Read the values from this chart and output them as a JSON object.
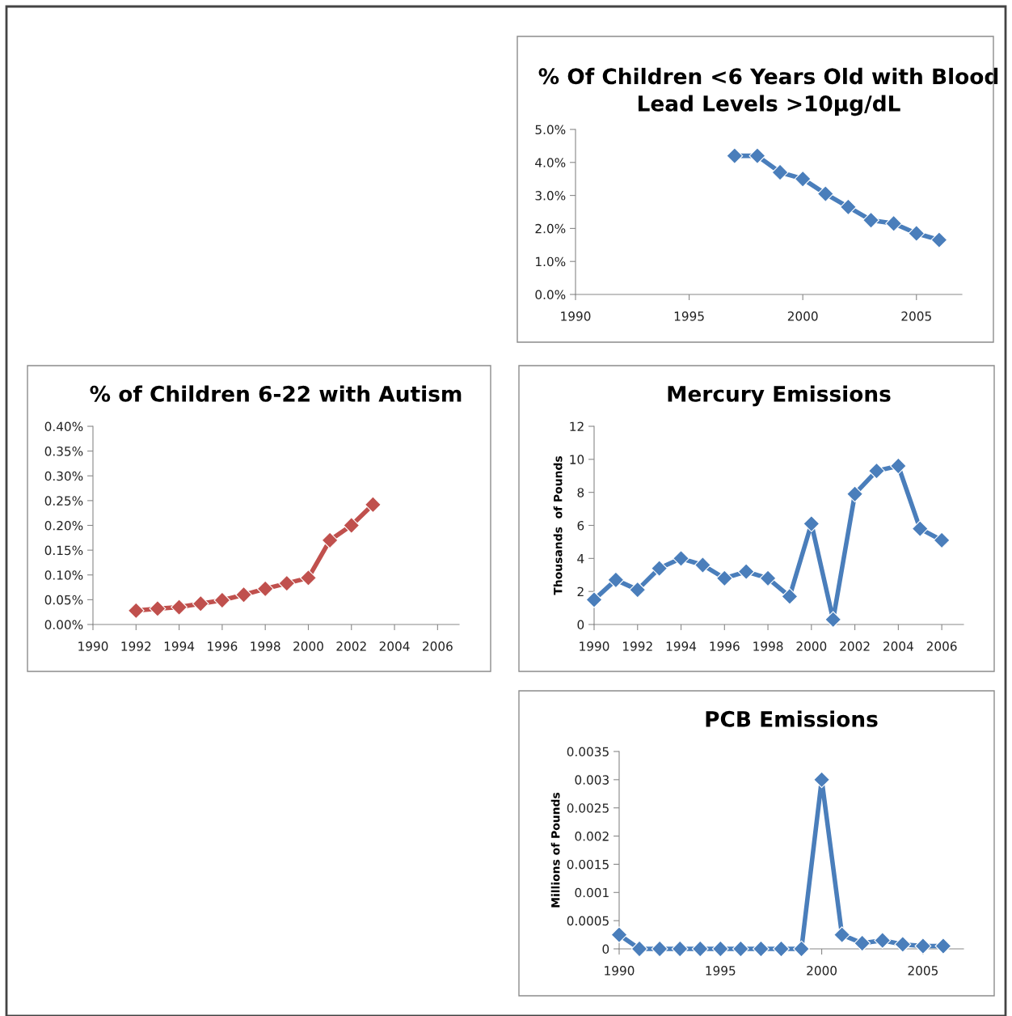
{
  "chart_data": [
    {
      "type": "line",
      "title": "% Of Children <6 Years Old with Blood Lead Levels >10µg/dL",
      "x": [
        1997,
        1998,
        1999,
        2000,
        2001,
        2002,
        2003,
        2004,
        2005,
        2006
      ],
      "series": [
        {
          "color": "#4a7ebb",
          "values": [
            4.2,
            4.2,
            3.7,
            3.5,
            3.05,
            2.65,
            2.25,
            2.15,
            1.85,
            1.65
          ]
        }
      ],
      "xlim": [
        1990,
        2007
      ],
      "xticks": [
        1990,
        1995,
        2000,
        2005
      ],
      "ylim": [
        0,
        5
      ],
      "yticks": [
        {
          "value": 0,
          "label": "0.0%"
        },
        {
          "value": 1,
          "label": "1.0%"
        },
        {
          "value": 2,
          "label": "2.0%"
        },
        {
          "value": 3,
          "label": "3.0%"
        },
        {
          "value": 4,
          "label": "4.0%"
        },
        {
          "value": 5,
          "label": "5.0%"
        }
      ],
      "marker": "diamond"
    },
    {
      "type": "line",
      "title": "% of Children 6-22 with Autism",
      "x": [
        1992,
        1993,
        1994,
        1995,
        1996,
        1997,
        1998,
        1999,
        2000,
        2001,
        2002,
        2003
      ],
      "series": [
        {
          "color": "#c0504d",
          "values": [
            0.028,
            0.032,
            0.035,
            0.042,
            0.049,
            0.06,
            0.072,
            0.083,
            0.094,
            0.17,
            0.2,
            0.242
          ]
        }
      ],
      "xlim": [
        1990,
        2007
      ],
      "xticks": [
        1990,
        1992,
        1994,
        1996,
        1998,
        2000,
        2002,
        2004,
        2006
      ],
      "ylim": [
        0,
        0.4
      ],
      "yticks": [
        {
          "value": 0,
          "label": "0.00%"
        },
        {
          "value": 0.05,
          "label": "0.05%"
        },
        {
          "value": 0.1,
          "label": "0.10%"
        },
        {
          "value": 0.15,
          "label": "0.15%"
        },
        {
          "value": 0.2,
          "label": "0.20%"
        },
        {
          "value": 0.25,
          "label": "0.25%"
        },
        {
          "value": 0.3,
          "label": "0.30%"
        },
        {
          "value": 0.35,
          "label": "0.35%"
        },
        {
          "value": 0.4,
          "label": "0.40%"
        }
      ],
      "marker": "diamond"
    },
    {
      "type": "line",
      "title": "Mercury Emissions",
      "ylabel": "Thousands  of Pounds",
      "x": [
        1990,
        1991,
        1992,
        1993,
        1994,
        1995,
        1996,
        1997,
        1998,
        1999,
        2000,
        2001,
        2002,
        2003,
        2004,
        2005,
        2006
      ],
      "series": [
        {
          "color": "#4a7ebb",
          "values": [
            1.5,
            2.7,
            2.1,
            3.4,
            4.0,
            3.6,
            2.8,
            3.2,
            2.8,
            1.7,
            6.1,
            0.3,
            7.9,
            9.3,
            9.6,
            5.8,
            5.1
          ]
        }
      ],
      "xlim": [
        1990,
        2007
      ],
      "xticks": [
        1990,
        1992,
        1994,
        1996,
        1998,
        2000,
        2002,
        2004,
        2006
      ],
      "ylim": [
        0,
        12
      ],
      "yticks": [
        0,
        2,
        4,
        6,
        8,
        10,
        12
      ],
      "marker": "diamond"
    },
    {
      "type": "line",
      "title": "PCB Emissions",
      "ylabel": "Millions of Pounds",
      "x": [
        1990,
        1991,
        1992,
        1993,
        1994,
        1995,
        1996,
        1997,
        1998,
        1999,
        2000,
        2001,
        2002,
        2003,
        2004,
        2005,
        2006
      ],
      "series": [
        {
          "color": "#4a7ebb",
          "values": [
            0.00025,
            0,
            0,
            0,
            0,
            0,
            0,
            0,
            0,
            0,
            0.003,
            0.00025,
            0.0001,
            0.00015,
            8e-05,
            5e-05,
            5e-05
          ]
        }
      ],
      "xlim": [
        1990,
        2007
      ],
      "xticks": [
        1990,
        1995,
        2000,
        2005
      ],
      "ylim": [
        0,
        0.0035
      ],
      "yticks": [
        0,
        0.0005,
        0.001,
        0.0015,
        0.002,
        0.0025,
        0.003,
        0.0035
      ],
      "marker": "diamond"
    }
  ]
}
